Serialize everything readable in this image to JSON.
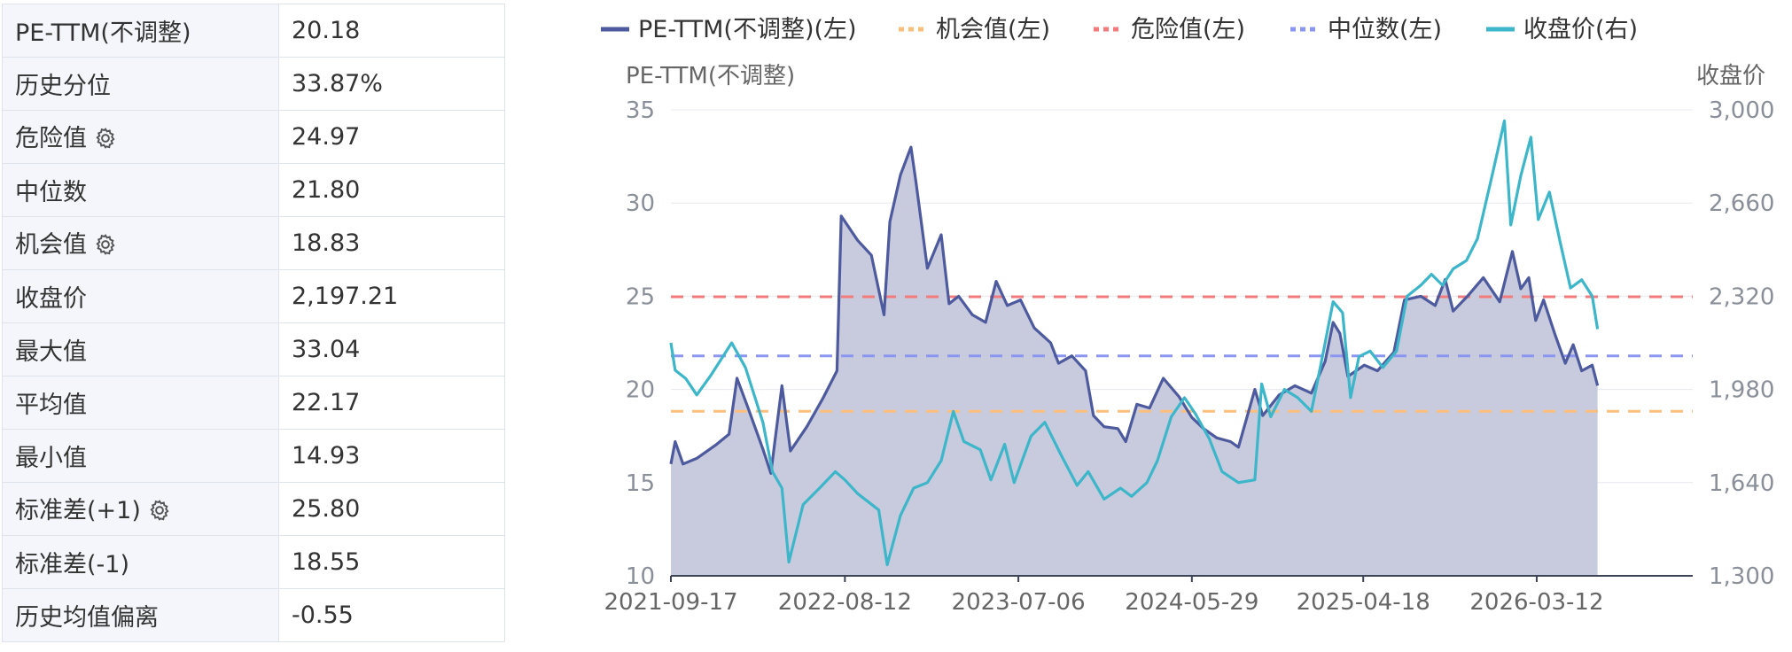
{
  "stats": [
    {
      "label": "PE-TTM(不调整)",
      "value": "20.18",
      "gear": false
    },
    {
      "label": "历史分位",
      "value": "33.87%",
      "gear": false
    },
    {
      "label": "危险值",
      "value": "24.97",
      "gear": true
    },
    {
      "label": "中位数",
      "value": "21.80",
      "gear": false
    },
    {
      "label": "机会值",
      "value": "18.83",
      "gear": true
    },
    {
      "label": "收盘价",
      "value": "2,197.21",
      "gear": false
    },
    {
      "label": "最大值",
      "value": "33.04",
      "gear": false
    },
    {
      "label": "平均值",
      "value": "22.17",
      "gear": false
    },
    {
      "label": "最小值",
      "value": "14.93",
      "gear": false
    },
    {
      "label": "标准差(+1)",
      "value": "25.80",
      "gear": true
    },
    {
      "label": "标准差(-1)",
      "value": "18.55",
      "gear": false
    },
    {
      "label": "历史均值偏离",
      "value": "-0.55",
      "gear": false
    }
  ],
  "chart_data": {
    "type": "line",
    "legend_position": "top",
    "grid": true,
    "left_axis_title": "PE-TTM(不调整)",
    "right_axis_title": "收盘价",
    "ylim_left": [
      10,
      35
    ],
    "ylim_right": [
      1300,
      3000
    ],
    "y_ticks_left": [
      "10",
      "15",
      "20",
      "25",
      "30",
      "35"
    ],
    "y_ticks_right": [
      "1,300",
      "1,640",
      "1,980",
      "2,320",
      "2,660",
      "3,000"
    ],
    "x_range": [
      "2021-09-17",
      "2027-01-01"
    ],
    "x_tick_labels": [
      "2021-09-17",
      "2022-08-12",
      "2023-07-06",
      "2024-05-29",
      "2025-04-18",
      "2026-03-12"
    ],
    "legend": [
      {
        "label": "PE-TTM(不调整)(左)",
        "color": "#4e5a9e",
        "dashed": false
      },
      {
        "label": "机会值(左)",
        "color": "#fbbf7d",
        "dashed": true
      },
      {
        "label": "危险值(左)",
        "color": "#f47b7b",
        "dashed": true
      },
      {
        "label": "中位数(左)",
        "color": "#8a96f0",
        "dashed": true
      },
      {
        "label": "收盘价(右)",
        "color": "#3db6c9",
        "dashed": false
      }
    ],
    "reference_lines": [
      {
        "name": "机会值",
        "value": 18.83,
        "color": "#fbbf7d"
      },
      {
        "name": "危险值",
        "value": 24.97,
        "color": "#f47b7b"
      },
      {
        "name": "中位数",
        "value": 21.8,
        "color": "#8a96f0"
      }
    ],
    "series": [
      {
        "name": "PE-TTM(不调整)",
        "axis": "left",
        "color": "#4e5a9e",
        "fill": "#c5c8dc",
        "points": [
          [
            "2021-09-17",
            16.0
          ],
          [
            "2021-09-25",
            17.2
          ],
          [
            "2021-10-10",
            16.0
          ],
          [
            "2021-11-05",
            16.3
          ],
          [
            "2021-12-10",
            17.0
          ],
          [
            "2022-01-05",
            17.6
          ],
          [
            "2022-01-20",
            20.6
          ],
          [
            "2022-02-10",
            19.0
          ],
          [
            "2022-03-10",
            16.8
          ],
          [
            "2022-03-25",
            15.5
          ],
          [
            "2022-04-15",
            20.2
          ],
          [
            "2022-05-01",
            16.7
          ],
          [
            "2022-06-01",
            18.0
          ],
          [
            "2022-07-01",
            19.5
          ],
          [
            "2022-07-28",
            21.0
          ],
          [
            "2022-08-05",
            29.3
          ],
          [
            "2022-09-05",
            28.0
          ],
          [
            "2022-10-01",
            27.2
          ],
          [
            "2022-10-25",
            24.0
          ],
          [
            "2022-11-05",
            29.0
          ],
          [
            "2022-11-25",
            31.5
          ],
          [
            "2022-12-15",
            33.0
          ],
          [
            "2022-12-25",
            31.0
          ],
          [
            "2023-01-15",
            26.5
          ],
          [
            "2023-02-10",
            28.3
          ],
          [
            "2023-02-25",
            24.6
          ],
          [
            "2023-03-15",
            25.0
          ],
          [
            "2023-04-10",
            24.0
          ],
          [
            "2023-05-05",
            23.6
          ],
          [
            "2023-05-25",
            25.8
          ],
          [
            "2023-06-15",
            24.5
          ],
          [
            "2023-07-10",
            24.8
          ],
          [
            "2023-08-05",
            23.3
          ],
          [
            "2023-09-05",
            22.5
          ],
          [
            "2023-09-20",
            21.4
          ],
          [
            "2023-10-15",
            21.8
          ],
          [
            "2023-11-10",
            21.0
          ],
          [
            "2023-11-25",
            18.6
          ],
          [
            "2023-12-15",
            18.0
          ],
          [
            "2024-01-10",
            17.9
          ],
          [
            "2024-01-25",
            17.2
          ],
          [
            "2024-02-15",
            19.2
          ],
          [
            "2024-03-10",
            19.0
          ],
          [
            "2024-04-05",
            20.6
          ],
          [
            "2024-05-05",
            19.6
          ],
          [
            "2024-05-29",
            18.5
          ],
          [
            "2024-06-20",
            17.9
          ],
          [
            "2024-07-15",
            17.4
          ],
          [
            "2024-08-10",
            17.2
          ],
          [
            "2024-08-25",
            16.9
          ],
          [
            "2024-09-25",
            20.0
          ],
          [
            "2024-10-10",
            18.6
          ],
          [
            "2024-11-10",
            19.7
          ],
          [
            "2024-12-10",
            20.2
          ],
          [
            "2025-01-10",
            19.8
          ],
          [
            "2025-02-05",
            21.5
          ],
          [
            "2025-02-20",
            23.6
          ],
          [
            "2025-03-05",
            23.0
          ],
          [
            "2025-03-20",
            20.7
          ],
          [
            "2025-04-20",
            21.3
          ],
          [
            "2025-05-15",
            21.0
          ],
          [
            "2025-06-15",
            22.0
          ],
          [
            "2025-07-05",
            24.8
          ],
          [
            "2025-08-05",
            25.0
          ],
          [
            "2025-09-01",
            24.5
          ],
          [
            "2025-09-20",
            25.9
          ],
          [
            "2025-10-05",
            24.2
          ],
          [
            "2025-11-01",
            25.0
          ],
          [
            "2025-12-01",
            26.0
          ],
          [
            "2026-01-01",
            24.7
          ],
          [
            "2026-01-25",
            27.4
          ],
          [
            "2026-02-10",
            25.4
          ],
          [
            "2026-02-25",
            26.0
          ],
          [
            "2026-03-10",
            23.7
          ],
          [
            "2026-03-25",
            24.8
          ],
          [
            "2026-04-15",
            23.0
          ],
          [
            "2026-05-05",
            21.4
          ],
          [
            "2026-05-20",
            22.4
          ],
          [
            "2026-06-05",
            21.0
          ],
          [
            "2026-06-25",
            21.3
          ],
          [
            "2026-07-05",
            20.2
          ]
        ]
      },
      {
        "name": "收盘价",
        "axis": "right",
        "color": "#3db6c9",
        "points": [
          [
            "2021-09-17",
            2150
          ],
          [
            "2021-09-25",
            2050
          ],
          [
            "2021-10-15",
            2020
          ],
          [
            "2021-11-05",
            1960
          ],
          [
            "2021-12-01",
            2030
          ],
          [
            "2022-01-10",
            2150
          ],
          [
            "2022-02-05",
            2060
          ],
          [
            "2022-03-10",
            1860
          ],
          [
            "2022-03-28",
            1680
          ],
          [
            "2022-04-15",
            1620
          ],
          [
            "2022-04-28",
            1350
          ],
          [
            "2022-05-25",
            1560
          ],
          [
            "2022-06-25",
            1620
          ],
          [
            "2022-07-25",
            1680
          ],
          [
            "2022-08-12",
            1650
          ],
          [
            "2022-09-05",
            1600
          ],
          [
            "2022-10-15",
            1540
          ],
          [
            "2022-10-31",
            1340
          ],
          [
            "2022-11-25",
            1520
          ],
          [
            "2022-12-20",
            1620
          ],
          [
            "2023-01-15",
            1640
          ],
          [
            "2023-02-10",
            1720
          ],
          [
            "2023-03-05",
            1900
          ],
          [
            "2023-03-25",
            1790
          ],
          [
            "2023-04-25",
            1760
          ],
          [
            "2023-05-15",
            1650
          ],
          [
            "2023-06-10",
            1780
          ],
          [
            "2023-06-28",
            1640
          ],
          [
            "2023-07-30",
            1810
          ],
          [
            "2023-08-25",
            1860
          ],
          [
            "2023-09-25",
            1740
          ],
          [
            "2023-10-25",
            1630
          ],
          [
            "2023-11-15",
            1680
          ],
          [
            "2023-12-15",
            1580
          ],
          [
            "2024-01-15",
            1620
          ],
          [
            "2024-02-05",
            1590
          ],
          [
            "2024-03-05",
            1640
          ],
          [
            "2024-03-25",
            1720
          ],
          [
            "2024-04-20",
            1880
          ],
          [
            "2024-05-15",
            1950
          ],
          [
            "2024-06-05",
            1890
          ],
          [
            "2024-07-01",
            1800
          ],
          [
            "2024-07-25",
            1680
          ],
          [
            "2024-08-25",
            1640
          ],
          [
            "2024-09-25",
            1650
          ],
          [
            "2024-10-08",
            2000
          ],
          [
            "2024-10-25",
            1880
          ],
          [
            "2024-11-20",
            1980
          ],
          [
            "2024-12-15",
            1950
          ],
          [
            "2025-01-10",
            1900
          ],
          [
            "2025-02-01",
            2110
          ],
          [
            "2025-02-20",
            2300
          ],
          [
            "2025-03-10",
            2260
          ],
          [
            "2025-03-25",
            1950
          ],
          [
            "2025-04-10",
            2100
          ],
          [
            "2025-05-01",
            2120
          ],
          [
            "2025-05-25",
            2060
          ],
          [
            "2025-06-20",
            2120
          ],
          [
            "2025-07-10",
            2320
          ],
          [
            "2025-08-05",
            2360
          ],
          [
            "2025-08-25",
            2400
          ],
          [
            "2025-09-15",
            2360
          ],
          [
            "2025-10-05",
            2420
          ],
          [
            "2025-10-30",
            2450
          ],
          [
            "2025-11-20",
            2530
          ],
          [
            "2025-12-20",
            2780
          ],
          [
            "2026-01-10",
            2960
          ],
          [
            "2026-01-22",
            2580
          ],
          [
            "2026-02-10",
            2760
          ],
          [
            "2026-03-01",
            2900
          ],
          [
            "2026-03-15",
            2600
          ],
          [
            "2026-04-05",
            2700
          ],
          [
            "2026-04-25",
            2520
          ],
          [
            "2026-05-15",
            2350
          ],
          [
            "2026-06-05",
            2380
          ],
          [
            "2026-06-25",
            2320
          ],
          [
            "2026-07-05",
            2200
          ]
        ]
      }
    ]
  }
}
